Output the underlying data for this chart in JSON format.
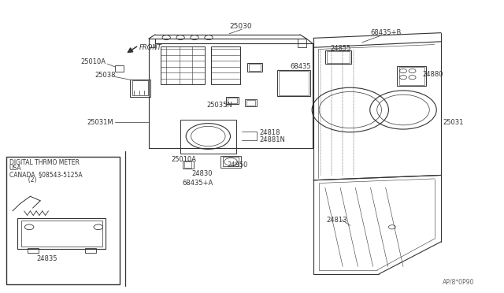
{
  "bg_color": "#ffffff",
  "line_color": "#333333",
  "diagram_id": "AP/8*0P90",
  "inset_text": [
    "DIGITAL THRMO METER",
    "USA",
    "CANADA  §08543-5125A",
    "          (2)"
  ]
}
